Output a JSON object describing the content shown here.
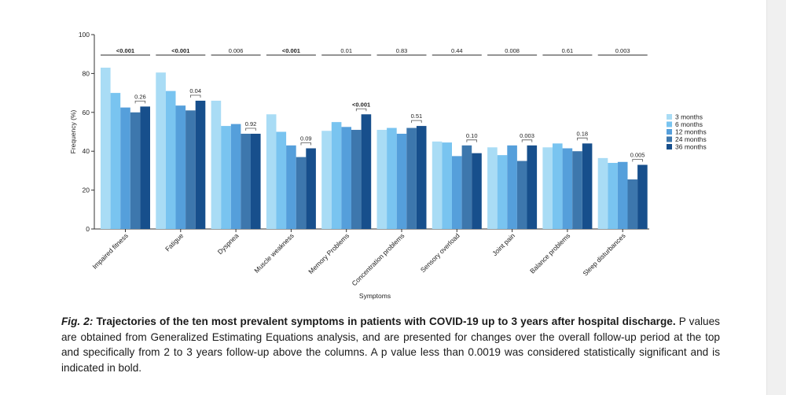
{
  "chart_data": {
    "type": "bar",
    "xlabel": "Symptoms",
    "ylabel": "Frequency (%)",
    "ylim": [
      0,
      100
    ],
    "yticks": [
      0,
      20,
      40,
      60,
      80,
      100
    ],
    "grid": false,
    "legend_position": "right",
    "categories": [
      "Impaired fitness",
      "Fatigue",
      "Dyspnea",
      "Muscle weakness",
      "Memory Problems",
      "Concentration problems",
      "Sensory overload",
      "Joint pain",
      "Balance problems",
      "Sleep disturbances"
    ],
    "series": [
      {
        "name": "3 months",
        "color": "#a9dcf5",
        "values": [
          83,
          80.5,
          66,
          59,
          50.5,
          51,
          45,
          42,
          42,
          36.5
        ]
      },
      {
        "name": "6 months",
        "color": "#79c4f0",
        "values": [
          70,
          71,
          53,
          50,
          55,
          52,
          44.5,
          38,
          44,
          34
        ]
      },
      {
        "name": "12 months",
        "color": "#559fdb",
        "values": [
          62.5,
          63.5,
          54,
          43,
          52.5,
          49,
          37.5,
          43,
          41.5,
          34.5
        ]
      },
      {
        "name": "24 months",
        "color": "#3d77ad",
        "values": [
          60,
          61,
          49,
          37,
          51,
          52,
          43,
          35,
          40,
          25.5
        ]
      },
      {
        "name": "36 months",
        "color": "#174f8c",
        "values": [
          63,
          66,
          49,
          41.5,
          59,
          53,
          39,
          43,
          44,
          33
        ]
      }
    ],
    "overall_p_values": [
      {
        "label": "<0.001",
        "bold": true
      },
      {
        "label": "<0.001",
        "bold": true
      },
      {
        "label": "0.006",
        "bold": false
      },
      {
        "label": "<0.001",
        "bold": true
      },
      {
        "label": "0.01",
        "bold": false
      },
      {
        "label": "0.83",
        "bold": false
      },
      {
        "label": "0.44",
        "bold": false
      },
      {
        "label": "0.008",
        "bold": false
      },
      {
        "label": "0.61",
        "bold": false
      },
      {
        "label": "0.003",
        "bold": false
      }
    ],
    "two_to_three_year_p_values": [
      {
        "label": "0.26",
        "bold": false
      },
      {
        "label": "0.04",
        "bold": false
      },
      {
        "label": "0.92",
        "bold": false
      },
      {
        "label": "0.09",
        "bold": false
      },
      {
        "label": "<0.001",
        "bold": true
      },
      {
        "label": "0.51",
        "bold": false
      },
      {
        "label": "0.10",
        "bold": false
      },
      {
        "label": "0.003",
        "bold": false
      },
      {
        "label": "0.18",
        "bold": false
      },
      {
        "label": "0.005",
        "bold": false
      }
    ]
  },
  "caption": {
    "label": "Fig. 2:",
    "title": "Trajectories of the ten most prevalent symptoms in patients with COVID-19 up to 3 years after hospital discharge.",
    "body": "P values are obtained from Generalized Estimating Equations analysis, and are presented for changes over the overall follow-up period at the top and specifically from 2 to 3 years follow-up above the columns. A p value less than 0.0019 was considered statistically significant and is indicated in bold."
  }
}
